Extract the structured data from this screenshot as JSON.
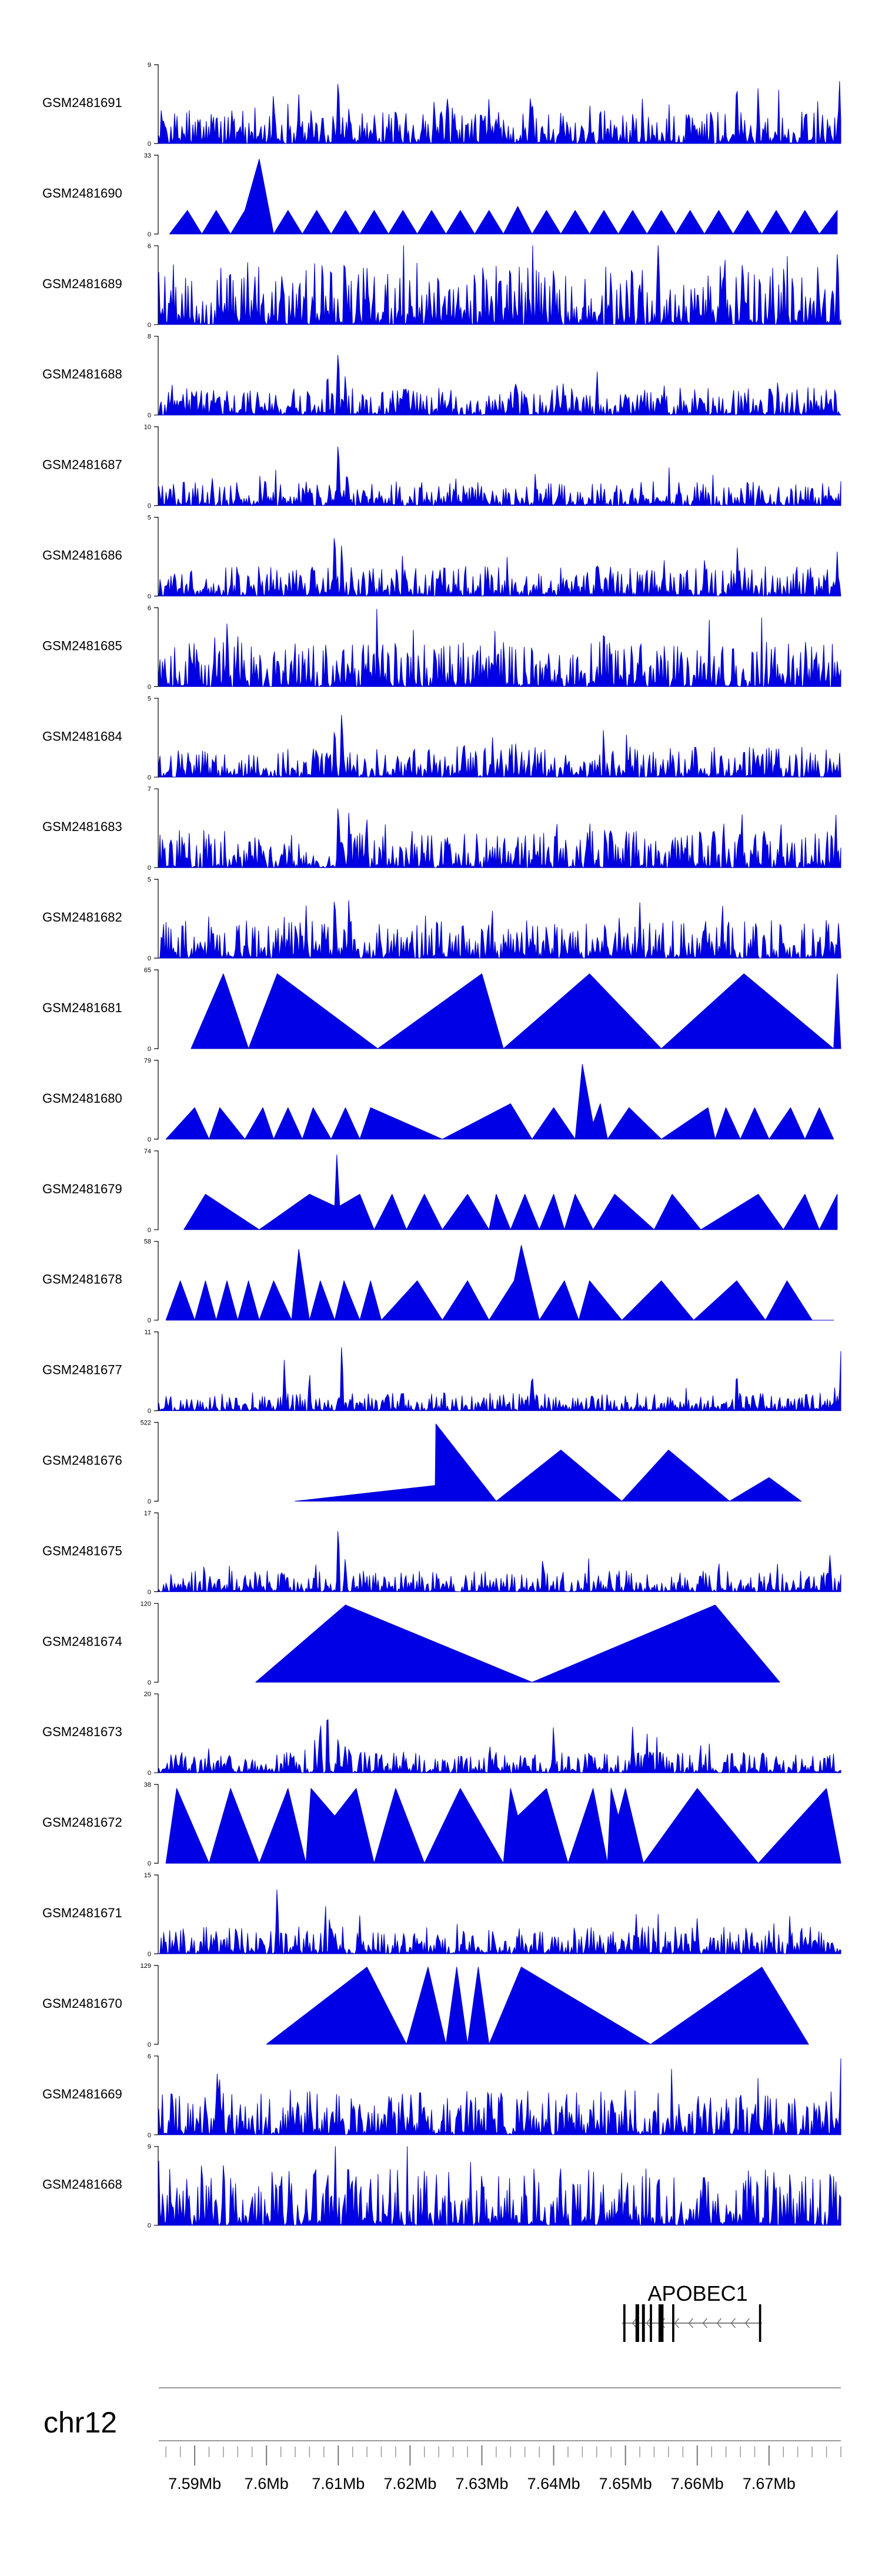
{
  "chart_data": {
    "type": "area",
    "chromosome": "chr12",
    "xrange": [
      7585000,
      7680000
    ],
    "x_tick_labels": [
      "7.59Mb",
      "7.6Mb",
      "7.61Mb",
      "7.62Mb",
      "7.63Mb",
      "7.64Mb",
      "7.65Mb",
      "7.66Mb",
      "7.67Mb"
    ],
    "x_ticks": [
      7590000,
      7600000,
      7610000,
      7620000,
      7630000,
      7640000,
      7650000,
      7660000,
      7670000
    ],
    "tracks": [
      {
        "name": "GSM2481691",
        "ymin": "0",
        "ymax": "9",
        "style": "dense",
        "seed": 11,
        "base": 0.22,
        "peaks": [
          [
            7595200,
            0.45
          ],
          [
            7601000,
            0.7
          ],
          [
            7604500,
            0.6
          ],
          [
            7610000,
            0.95
          ],
          [
            7611500,
            0.5
          ],
          [
            7618000,
            0.55
          ],
          [
            7631000,
            0.6
          ],
          [
            7637000,
            0.65
          ],
          [
            7646500,
            0.55
          ],
          [
            7665500,
            0.9
          ],
          [
            7668500,
            0.75
          ],
          [
            7679800,
            0.85
          ]
        ]
      },
      {
        "name": "GSM2481690",
        "ymin": "0",
        "ymax": "33",
        "style": "tri",
        "xs": [
          7586500,
          7589000,
          7591000,
          7593000,
          7595000,
          7597000,
          7599000,
          7601000,
          7603000,
          7605000,
          7607000,
          7609000,
          7611000,
          7613000,
          7615000,
          7617000,
          7619000,
          7621000,
          7623000,
          7625000,
          7627000,
          7629000,
          7631000,
          7633000,
          7635000,
          7637000,
          7639000,
          7641000,
          7643000,
          7645000,
          7647000,
          7649000,
          7651000,
          7653000,
          7655000,
          7657000,
          7659000,
          7661000,
          7663000,
          7665000,
          7667000,
          7669000,
          7671000,
          7673000,
          7675000,
          7677000,
          7679500
        ],
        "ys": [
          0,
          0.3,
          0,
          0.3,
          0,
          0.3,
          0.95,
          0,
          0.3,
          0,
          0.3,
          0,
          0.3,
          0,
          0.3,
          0,
          0.3,
          0,
          0.3,
          0,
          0.3,
          0,
          0.3,
          0,
          0.35,
          0,
          0.3,
          0,
          0.3,
          0,
          0.3,
          0,
          0.3,
          0,
          0.3,
          0,
          0.3,
          0,
          0.3,
          0,
          0.3,
          0,
          0.3,
          0,
          0.3,
          0,
          0.3
        ]
      },
      {
        "name": "GSM2481689",
        "ymin": "0",
        "ymax": "6",
        "style": "dense",
        "seed": 23,
        "base": 0.4,
        "peaks": [
          [
            7609000,
            0.95
          ],
          [
            7611000,
            0.85
          ],
          [
            7614000,
            0.7
          ],
          [
            7640000,
            0.75
          ],
          [
            7651000,
            0.65
          ]
        ]
      },
      {
        "name": "GSM2481688",
        "ymin": "0",
        "ymax": "8",
        "style": "dense",
        "seed": 31,
        "base": 0.18,
        "peaks": [
          [
            7608500,
            0.65
          ],
          [
            7610000,
            0.95
          ],
          [
            7611000,
            0.55
          ],
          [
            7640500,
            0.4
          ]
        ]
      },
      {
        "name": "GSM2481687",
        "ymin": "0",
        "ymax": "10",
        "style": "dense",
        "seed": 37,
        "base": 0.16,
        "peaks": [
          [
            7610000,
            0.95
          ],
          [
            7611200,
            0.5
          ],
          [
            7592500,
            0.35
          ],
          [
            7676000,
            0.3
          ]
        ]
      },
      {
        "name": "GSM2481686",
        "ymin": "0",
        "ymax": "5",
        "style": "dense",
        "seed": 41,
        "base": 0.2,
        "peaks": [
          [
            7609500,
            0.95
          ],
          [
            7610500,
            0.75
          ],
          [
            7646000,
            0.5
          ],
          [
            7661000,
            0.45
          ],
          [
            7679500,
            0.55
          ]
        ]
      },
      {
        "name": "GSM2481685",
        "ymin": "0",
        "ymax": "6",
        "style": "dense",
        "seed": 43,
        "base": 0.3,
        "peaks": [
          [
            7594500,
            0.75
          ],
          [
            7596000,
            0.7
          ],
          [
            7647000,
            0.9
          ],
          [
            7665000,
            0.65
          ]
        ]
      },
      {
        "name": "GSM2481684",
        "ymin": "0",
        "ymax": "5",
        "style": "dense",
        "seed": 47,
        "base": 0.2,
        "peaks": [
          [
            7609500,
            0.75
          ],
          [
            7610500,
            0.95
          ],
          [
            7627500,
            0.55
          ],
          [
            7631500,
            0.5
          ]
        ]
      },
      {
        "name": "GSM2481683",
        "ymin": "0",
        "ymax": "7",
        "style": "dense",
        "seed": 53,
        "base": 0.25,
        "peaks": [
          [
            7610000,
            0.95
          ],
          [
            7611500,
            0.8
          ],
          [
            7614000,
            0.6
          ],
          [
            7648000,
            0.55
          ],
          [
            7666000,
            0.55
          ]
        ]
      },
      {
        "name": "GSM2481682",
        "ymin": "0",
        "ymax": "5",
        "style": "dense",
        "seed": 59,
        "base": 0.25,
        "peaks": [
          [
            7609500,
            0.95
          ],
          [
            7611500,
            0.8
          ],
          [
            7652000,
            0.7
          ],
          [
            7663500,
            0.75
          ],
          [
            7678000,
            0.55
          ]
        ]
      },
      {
        "name": "GSM2481681",
        "ymin": "0",
        "ymax": "65",
        "style": "tri",
        "xs": [
          7589500,
          7594000,
          7597500,
          7601500,
          7615500,
          7630000,
          7633000,
          7645000,
          7655000,
          7666500,
          7679000,
          7679500,
          7680000
        ],
        "ys": [
          0,
          0.95,
          0,
          0.95,
          0,
          0.95,
          0,
          0.95,
          0,
          0.95,
          0,
          0.95,
          0
        ]
      },
      {
        "name": "GSM2481680",
        "ymin": "0",
        "ymax": "79",
        "style": "tri",
        "xs": [
          7586000,
          7590000,
          7592000,
          7593500,
          7597000,
          7599500,
          7601000,
          7603000,
          7605000,
          7606500,
          7609000,
          7611000,
          7613000,
          7614500,
          7624500,
          7634000,
          7637000,
          7640000,
          7643000,
          7644000,
          7645500,
          7646500,
          7647500,
          7650500,
          7655000,
          7661500,
          7662500,
          7664000,
          7666000,
          7668000,
          7670000,
          7673000,
          7675000,
          7677000,
          7679000
        ],
        "ys": [
          0,
          0.4,
          0,
          0.4,
          0,
          0.4,
          0,
          0.4,
          0,
          0.4,
          0,
          0.4,
          0,
          0.4,
          0,
          0.45,
          0,
          0.4,
          0,
          0.95,
          0.2,
          0.45,
          0,
          0.4,
          0,
          0.4,
          0,
          0.4,
          0,
          0.4,
          0,
          0.4,
          0,
          0.4,
          0
        ]
      },
      {
        "name": "GSM2481679",
        "ymin": "0",
        "ymax": "74",
        "style": "tri",
        "xs": [
          7588500,
          7591500,
          7599000,
          7606000,
          7609500,
          7609800,
          7610200,
          7613000,
          7615000,
          7617500,
          7619500,
          7622000,
          7624500,
          7628000,
          7631000,
          7632000,
          7634000,
          7636000,
          7638000,
          7640000,
          7641500,
          7643000,
          7645500,
          7648500,
          7654000,
          7656500,
          7660500,
          7668500,
          7672000,
          7675000,
          7677000,
          7679500
        ],
        "ys": [
          0,
          0.45,
          0,
          0.45,
          0.3,
          0.95,
          0.3,
          0.45,
          0,
          0.45,
          0,
          0.45,
          0,
          0.45,
          0,
          0.45,
          0,
          0.45,
          0,
          0.45,
          0,
          0.45,
          0,
          0.45,
          0,
          0.45,
          0,
          0.45,
          0,
          0.45,
          0,
          0.45
        ]
      },
      {
        "name": "GSM2481678",
        "ymin": "0",
        "ymax": "58",
        "style": "tri",
        "xs": [
          7586000,
          7588000,
          7590000,
          7591500,
          7593000,
          7594500,
          7596000,
          7597500,
          7599000,
          7601000,
          7603500,
          7604500,
          7606000,
          7607500,
          7609500,
          7610800,
          7613000,
          7614500,
          7616000,
          7621000,
          7624500,
          7628000,
          7631000,
          7634500,
          7635500,
          7638000,
          7641500,
          7643500,
          7645000,
          7649500,
          7655000,
          7659500,
          7665500,
          7669500,
          7672500,
          7676000,
          7679000
        ],
        "ys": [
          0,
          0.5,
          0,
          0.5,
          0,
          0.5,
          0,
          0.5,
          0,
          0.5,
          0,
          0.9,
          0,
          0.5,
          0,
          0.5,
          0,
          0.5,
          0,
          0.5,
          0,
          0.5,
          0,
          0.5,
          0.95,
          0,
          0.5,
          0,
          0.5,
          0,
          0.5,
          0,
          0.5,
          0,
          0.5,
          0,
          0
        ]
      },
      {
        "name": "GSM2481677",
        "ymin": "0",
        "ymax": "11",
        "style": "dense",
        "seed": 61,
        "base": 0.12,
        "peaks": [
          [
            7602500,
            0.7
          ],
          [
            7610500,
            0.95
          ],
          [
            7606000,
            0.5
          ],
          [
            7637000,
            0.55
          ],
          [
            7665500,
            0.55
          ],
          [
            7680000,
            0.75
          ]
        ]
      },
      {
        "name": "GSM2481676",
        "ymin": "0",
        "ymax": "522",
        "style": "tri",
        "xs": [
          7604000,
          7623500,
          7623600,
          7632000,
          7641000,
          7649500,
          7656000,
          7664500,
          7670000,
          7674500
        ],
        "ys": [
          0,
          0.2,
          0.98,
          0,
          0.65,
          0,
          0.65,
          0,
          0.3,
          0
        ]
      },
      {
        "name": "GSM2481675",
        "ymin": "0",
        "ymax": "17",
        "style": "dense",
        "seed": 67,
        "base": 0.14,
        "peaks": [
          [
            7610000,
            0.95
          ],
          [
            7611000,
            0.45
          ],
          [
            7638500,
            0.45
          ],
          [
            7663000,
            0.4
          ],
          [
            7678500,
            0.5
          ]
        ]
      },
      {
        "name": "GSM2481674",
        "ymin": "0",
        "ymax": "120",
        "style": "tri",
        "xs": [
          7598500,
          7611000,
          7637000,
          7662500,
          7671500
        ],
        "ys": [
          0,
          0.98,
          0,
          0.98,
          0
        ]
      },
      {
        "name": "GSM2481673",
        "ymin": "0",
        "ymax": "20",
        "style": "dense",
        "seed": 71,
        "base": 0.14,
        "peaks": [
          [
            7607500,
            0.75
          ],
          [
            7608500,
            0.95
          ],
          [
            7610000,
            0.55
          ],
          [
            7611000,
            0.4
          ],
          [
            7640000,
            0.65
          ],
          [
            7651000,
            0.6
          ],
          [
            7653000,
            0.5
          ]
        ]
      },
      {
        "name": "GSM2481672",
        "ymin": "0",
        "ymax": "38",
        "style": "tri",
        "xs": [
          7586000,
          7587500,
          7592000,
          7595000,
          7599000,
          7603000,
          7605500,
          7606200,
          7609500,
          7612500,
          7615000,
          7618000,
          7622000,
          7627000,
          7633000,
          7634000,
          7635000,
          7639000,
          7642000,
          7645500,
          7647500,
          7648000,
          7649000,
          7650000,
          7652500,
          7660000,
          7668500,
          7678000,
          7680000
        ],
        "ys": [
          0,
          0.95,
          0,
          0.95,
          0,
          0.95,
          0,
          0.95,
          0.6,
          0.95,
          0,
          0.95,
          0,
          0.95,
          0,
          0.95,
          0.6,
          0.95,
          0,
          0.95,
          0,
          0.95,
          0.6,
          0.95,
          0,
          0.95,
          0,
          0.95,
          0
        ]
      },
      {
        "name": "GSM2481671",
        "ymin": "0",
        "ymax": "15",
        "style": "dense",
        "seed": 73,
        "base": 0.18,
        "peaks": [
          [
            7601500,
            0.95
          ],
          [
            7613000,
            0.45
          ],
          [
            7651500,
            0.5
          ],
          [
            7660000,
            0.45
          ],
          [
            7674500,
            0.4
          ]
        ]
      },
      {
        "name": "GSM2481670",
        "ymin": "0",
        "ymax": "129",
        "style": "tri",
        "xs": [
          7600000,
          7614000,
          7619500,
          7622500,
          7625000,
          7626500,
          7628000,
          7629500,
          7631000,
          7635500,
          7653500,
          7669000,
          7675500
        ],
        "ys": [
          0,
          0.98,
          0,
          0.98,
          0,
          0.98,
          0,
          0.98,
          0,
          0.98,
          0,
          0.98,
          0
        ]
      },
      {
        "name": "GSM2481669",
        "ymin": "0",
        "ymax": "6",
        "style": "dense",
        "seed": 79,
        "base": 0.3,
        "peaks": [
          [
            7591500,
            0.55
          ],
          [
            7593500,
            0.75
          ],
          [
            7631000,
            0.5
          ],
          [
            7666000,
            0.65
          ],
          [
            7680000,
            0.95
          ]
        ]
      },
      {
        "name": "GSM2481668",
        "ymin": "0",
        "ymax": "9",
        "style": "dense",
        "seed": 83,
        "base": 0.38,
        "peaks": [
          [
            7591000,
            0.95
          ],
          [
            7594000,
            0.75
          ],
          [
            7611500,
            0.8
          ],
          [
            7622000,
            0.7
          ],
          [
            7641000,
            0.6
          ]
        ]
      }
    ],
    "gene": {
      "name": "APOBEC1",
      "strand": "-",
      "start": 7649500,
      "end": 7669000,
      "exons": [
        [
          7649700,
          7650000
        ],
        [
          7651400,
          7651900
        ],
        [
          7652300,
          7652700
        ],
        [
          7653400,
          7653700
        ],
        [
          7654600,
          7655300
        ],
        [
          7656500,
          7656800
        ],
        [
          7668600,
          7668900
        ]
      ]
    }
  }
}
